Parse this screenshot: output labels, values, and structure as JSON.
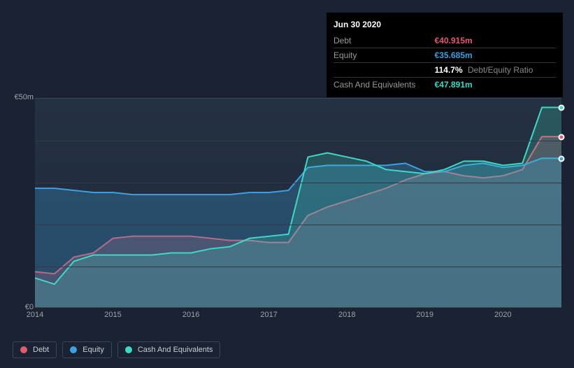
{
  "tooltip": {
    "date": "Jun 30 2020",
    "rows": [
      {
        "label": "Debt",
        "value": "€40.915m",
        "color": "#e05b6b"
      },
      {
        "label": "Equity",
        "value": "€35.685m",
        "color": "#3ea0e0"
      },
      {
        "label": "",
        "value": "114.7%",
        "extra": "Debt/Equity Ratio",
        "color": "#ffffff"
      },
      {
        "label": "Cash And Equivalents",
        "value": "€47.891m",
        "color": "#3ed9c4"
      }
    ]
  },
  "chart": {
    "type": "area",
    "background_top": "#243142",
    "background_bottom": "#1f2a3a",
    "grid_color": "#2e3a4a",
    "axis_color": "#3a4556",
    "label_color": "#9aa5b1",
    "label_fontsize": 11,
    "y": {
      "min": 0,
      "max": 50,
      "ticks": [
        {
          "v": 50,
          "label": "€50m"
        },
        {
          "v": 0,
          "label": "€0"
        }
      ],
      "gridlines": [
        10,
        20,
        30,
        40
      ]
    },
    "x": {
      "min": 2014,
      "max": 2020.75,
      "ticks": [
        {
          "v": 2014,
          "label": "2014"
        },
        {
          "v": 2015,
          "label": "2015"
        },
        {
          "v": 2016,
          "label": "2016"
        },
        {
          "v": 2017,
          "label": "2017"
        },
        {
          "v": 2018,
          "label": "2018"
        },
        {
          "v": 2019,
          "label": "2019"
        },
        {
          "v": 2020,
          "label": "2020"
        }
      ]
    },
    "series": [
      {
        "name": "Debt",
        "color": "#e05b6b",
        "fill": "rgba(224,91,107,0.25)",
        "line_width": 2,
        "points": [
          [
            2014,
            8.5
          ],
          [
            2014.25,
            8
          ],
          [
            2014.5,
            12
          ],
          [
            2014.75,
            13
          ],
          [
            2015,
            16.5
          ],
          [
            2015.25,
            17
          ],
          [
            2015.5,
            17
          ],
          [
            2015.75,
            17
          ],
          [
            2016,
            17
          ],
          [
            2016.25,
            16.5
          ],
          [
            2016.5,
            16
          ],
          [
            2016.75,
            16
          ],
          [
            2017,
            15.5
          ],
          [
            2017.25,
            15.5
          ],
          [
            2017.5,
            22
          ],
          [
            2017.75,
            24
          ],
          [
            2018,
            25.5
          ],
          [
            2018.25,
            27
          ],
          [
            2018.5,
            28.5
          ],
          [
            2018.75,
            30.5
          ],
          [
            2019,
            32
          ],
          [
            2019.25,
            32.5
          ],
          [
            2019.5,
            31.5
          ],
          [
            2019.75,
            31
          ],
          [
            2020,
            31.5
          ],
          [
            2020.25,
            33
          ],
          [
            2020.5,
            40.9
          ],
          [
            2020.75,
            40.9
          ]
        ]
      },
      {
        "name": "Equity",
        "color": "#3ea0e0",
        "fill": "rgba(62,160,224,0.28)",
        "line_width": 2,
        "points": [
          [
            2014,
            28.5
          ],
          [
            2014.25,
            28.5
          ],
          [
            2014.5,
            28
          ],
          [
            2014.75,
            27.5
          ],
          [
            2015,
            27.5
          ],
          [
            2015.25,
            27
          ],
          [
            2015.5,
            27
          ],
          [
            2015.75,
            27
          ],
          [
            2016,
            27
          ],
          [
            2016.25,
            27
          ],
          [
            2016.5,
            27
          ],
          [
            2016.75,
            27.5
          ],
          [
            2017,
            27.5
          ],
          [
            2017.25,
            28
          ],
          [
            2017.5,
            33.5
          ],
          [
            2017.75,
            34
          ],
          [
            2018,
            34
          ],
          [
            2018.25,
            34
          ],
          [
            2018.5,
            34
          ],
          [
            2018.75,
            34.5
          ],
          [
            2019,
            32.5
          ],
          [
            2019.25,
            32.5
          ],
          [
            2019.5,
            34
          ],
          [
            2019.75,
            34.5
          ],
          [
            2020,
            33.5
          ],
          [
            2020.25,
            34
          ],
          [
            2020.5,
            35.7
          ],
          [
            2020.75,
            35.7
          ]
        ]
      },
      {
        "name": "Cash And Equivalents",
        "color": "#3ed9c4",
        "fill": "rgba(62,217,196,0.22)",
        "line_width": 2,
        "points": [
          [
            2014,
            7
          ],
          [
            2014.25,
            5.5
          ],
          [
            2014.5,
            11
          ],
          [
            2014.75,
            12.5
          ],
          [
            2015,
            12.5
          ],
          [
            2015.25,
            12.5
          ],
          [
            2015.5,
            12.5
          ],
          [
            2015.75,
            13
          ],
          [
            2016,
            13
          ],
          [
            2016.25,
            14
          ],
          [
            2016.5,
            14.5
          ],
          [
            2016.75,
            16.5
          ],
          [
            2017,
            17
          ],
          [
            2017.25,
            17.5
          ],
          [
            2017.5,
            36
          ],
          [
            2017.75,
            37
          ],
          [
            2018,
            36
          ],
          [
            2018.25,
            35
          ],
          [
            2018.5,
            33
          ],
          [
            2018.75,
            32.5
          ],
          [
            2019,
            32
          ],
          [
            2019.25,
            33
          ],
          [
            2019.5,
            35
          ],
          [
            2019.75,
            35
          ],
          [
            2020,
            34
          ],
          [
            2020.25,
            34.5
          ],
          [
            2020.5,
            47.9
          ],
          [
            2020.75,
            47.9
          ]
        ]
      }
    ]
  },
  "legend": [
    {
      "label": "Debt",
      "color": "#e05b6b"
    },
    {
      "label": "Equity",
      "color": "#3ea0e0"
    },
    {
      "label": "Cash And Equivalents",
      "color": "#3ed9c4"
    }
  ]
}
